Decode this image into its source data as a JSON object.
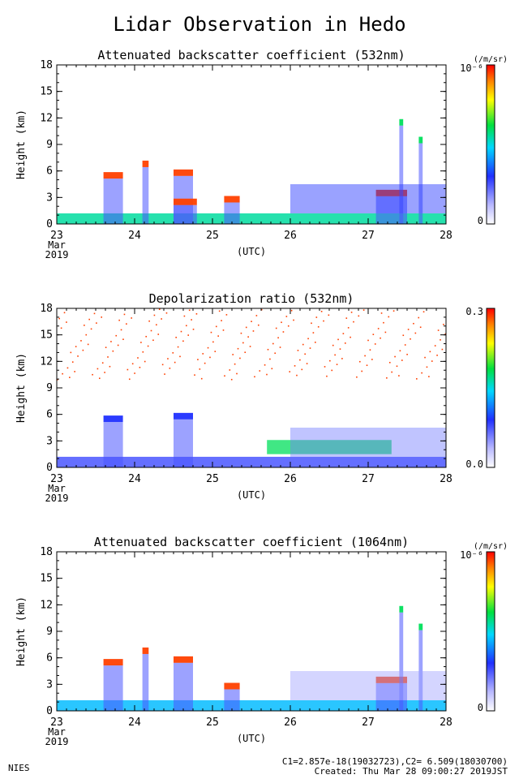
{
  "page": {
    "title": "Lidar Observation in Hedo",
    "footer_left": "NIES",
    "footer_line1": "C1=2.857e-18(19032723),C2= 6.509(18030700)",
    "footer_line2": "Created: Thu Mar 28 09:00:27 2019JST"
  },
  "chart_data": [
    {
      "type": "heatmap",
      "title": "Attenuated backscatter coefficient (532nm)",
      "ylabel": "Height (km)",
      "xlabel": "(UTC)",
      "x_ticks": [
        "23",
        "24",
        "25",
        "26",
        "27",
        "28"
      ],
      "x_sub": [
        "Mar",
        "2019"
      ],
      "xlim": [
        "2019-03-23",
        "2019-03-28"
      ],
      "y_ticks": [
        "0",
        "3",
        "6",
        "9",
        "12",
        "15",
        "18"
      ],
      "ylim": [
        0,
        18
      ],
      "colorbar": {
        "unit": "(/m/sr)",
        "max_label": "10⁻⁶",
        "min_label": "0",
        "scheme": "rainbow"
      },
      "features": [
        {
          "kind": "boundary_layer",
          "x_start": 23.0,
          "x_end": 28.0,
          "top_km": 1.2,
          "level": 0.55
        },
        {
          "kind": "cloud",
          "x": 23.6,
          "width_days": 0.25,
          "height_km": 5.5,
          "level": 0.95
        },
        {
          "kind": "cloud",
          "x": 24.1,
          "width_days": 0.08,
          "height_km": 6.8,
          "level": 0.95
        },
        {
          "kind": "cloud",
          "x": 24.5,
          "width_days": 0.25,
          "height_km": 5.8,
          "level": 0.95
        },
        {
          "kind": "cloud",
          "x": 24.5,
          "width_days": 0.3,
          "height_km": 2.5,
          "level": 0.95
        },
        {
          "kind": "cloud",
          "x": 25.15,
          "width_days": 0.2,
          "height_km": 2.8,
          "level": 0.95
        },
        {
          "kind": "cloud",
          "x": 27.1,
          "width_days": 0.4,
          "height_km": 3.5,
          "level": 0.95
        },
        {
          "kind": "cloud",
          "x": 27.4,
          "width_days": 0.05,
          "height_km": 11.5,
          "level": 0.6
        },
        {
          "kind": "cloud",
          "x": 27.65,
          "width_days": 0.05,
          "height_km": 9.5,
          "level": 0.6
        },
        {
          "kind": "aerosol_layer",
          "x_start": 26.0,
          "x_end": 28.0,
          "base_km": 1.2,
          "top_km": 4.5,
          "level": 0.3
        }
      ]
    },
    {
      "type": "heatmap",
      "title": "Depolarization ratio (532nm)",
      "ylabel": "Height (km)",
      "xlabel": "(UTC)",
      "x_ticks": [
        "23",
        "24",
        "25",
        "26",
        "27",
        "28"
      ],
      "x_sub": [
        "Mar",
        "2019"
      ],
      "xlim": [
        "2019-03-23",
        "2019-03-28"
      ],
      "y_ticks": [
        "0",
        "3",
        "6",
        "9",
        "12",
        "15",
        "18"
      ],
      "ylim": [
        0,
        18
      ],
      "colorbar": {
        "unit": "",
        "max_label": "0.3",
        "min_label": "0.0",
        "scheme": "rainbow"
      },
      "features": [
        {
          "kind": "boundary_layer",
          "x_start": 23.0,
          "x_end": 28.0,
          "top_km": 1.2,
          "level": 0.25
        },
        {
          "kind": "cloud",
          "x": 23.6,
          "width_days": 0.25,
          "height_km": 5.5,
          "level": 0.3
        },
        {
          "kind": "cloud",
          "x": 24.5,
          "width_days": 0.25,
          "height_km": 5.8,
          "level": 0.3
        },
        {
          "kind": "dust_layer",
          "x_start": 25.7,
          "x_end": 27.3,
          "center_km": 2.3,
          "level": 0.6
        },
        {
          "kind": "aerosol_layer",
          "x_start": 26.0,
          "x_end": 28.0,
          "base_km": 1.2,
          "top_km": 4.5,
          "level": 0.2
        },
        {
          "kind": "noise_band",
          "x_start": 23.0,
          "x_end": 28.0,
          "base_km": 10.0,
          "top_km": 18.0,
          "level": 0.95
        }
      ]
    },
    {
      "type": "heatmap",
      "title": "Attenuated backscatter coefficient (1064nm)",
      "ylabel": "Height (km)",
      "xlabel": "(UTC)",
      "x_ticks": [
        "23",
        "24",
        "25",
        "26",
        "27",
        "28"
      ],
      "x_sub": [
        "Mar",
        "2019"
      ],
      "xlim": [
        "2019-03-23",
        "2019-03-28"
      ],
      "y_ticks": [
        "0",
        "3",
        "6",
        "9",
        "12",
        "15",
        "18"
      ],
      "ylim": [
        0,
        18
      ],
      "colorbar": {
        "unit": "(/m/sr)",
        "max_label": "10⁻⁶",
        "min_label": "0",
        "scheme": "rainbow"
      },
      "features": [
        {
          "kind": "boundary_layer",
          "x_start": 23.0,
          "x_end": 28.0,
          "top_km": 1.2,
          "level": 0.45
        },
        {
          "kind": "cloud",
          "x": 23.6,
          "width_days": 0.25,
          "height_km": 5.5,
          "level": 0.95
        },
        {
          "kind": "cloud",
          "x": 24.1,
          "width_days": 0.08,
          "height_km": 6.8,
          "level": 0.95
        },
        {
          "kind": "cloud",
          "x": 24.5,
          "width_days": 0.25,
          "height_km": 5.8,
          "level": 0.95
        },
        {
          "kind": "cloud",
          "x": 25.15,
          "width_days": 0.2,
          "height_km": 2.8,
          "level": 0.95
        },
        {
          "kind": "cloud",
          "x": 27.1,
          "width_days": 0.4,
          "height_km": 3.5,
          "level": 0.95
        },
        {
          "kind": "cloud",
          "x": 27.4,
          "width_days": 0.05,
          "height_km": 11.5,
          "level": 0.6
        },
        {
          "kind": "cloud",
          "x": 27.65,
          "width_days": 0.05,
          "height_km": 9.5,
          "level": 0.6
        },
        {
          "kind": "aerosol_layer",
          "x_start": 26.0,
          "x_end": 28.0,
          "base_km": 1.2,
          "top_km": 4.5,
          "level": 0.15
        }
      ]
    }
  ]
}
